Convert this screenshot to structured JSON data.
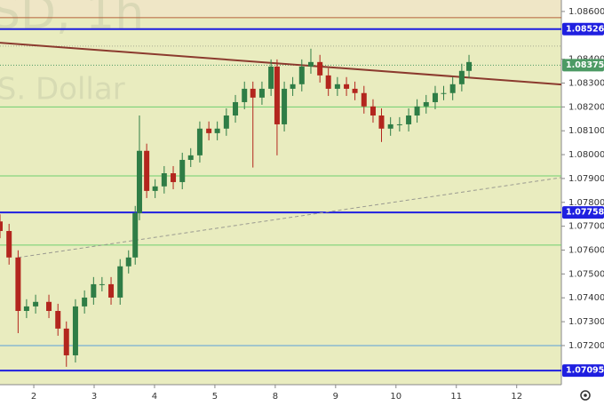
{
  "chart_data": {
    "type": "candlestick",
    "watermark": [
      "SD, 1h",
      ".S. Dollar"
    ],
    "x": [
      -0.56,
      -0.41,
      -0.26,
      -0.12,
      0.03,
      0.25,
      0.4,
      0.54,
      0.69,
      0.84,
      0.99,
      1.13,
      1.28,
      1.43,
      1.57,
      1.68,
      1.75,
      1.87,
      2.01,
      2.16,
      2.31,
      2.46,
      2.6,
      2.75,
      2.9,
      3.04,
      3.19,
      3.34,
      3.49,
      3.63,
      3.78,
      3.93,
      4.03,
      4.15,
      4.29,
      4.44,
      4.59,
      4.74,
      4.88,
      5.03,
      5.18,
      5.32,
      5.47,
      5.62,
      5.76,
      5.91,
      6.06,
      6.21,
      6.35,
      6.5,
      6.65,
      6.79,
      6.94,
      7.09,
      7.21
    ],
    "open": [
      1.0772,
      1.0768,
      1.07569,
      1.07345,
      1.07364,
      1.07383,
      1.07345,
      1.07271,
      1.07159,
      1.07364,
      1.07401,
      1.07457,
      1.07457,
      1.07401,
      1.07532,
      1.07569,
      1.07755,
      1.08016,
      1.07848,
      1.07867,
      1.07922,
      1.07885,
      1.07978,
      1.07997,
      1.08109,
      1.0809,
      1.08109,
      1.08164,
      1.0822,
      1.08276,
      1.08239,
      1.08276,
      1.08369,
      1.08127,
      1.08276,
      1.08295,
      1.08369,
      1.08388,
      1.08332,
      1.08276,
      1.08295,
      1.08276,
      1.08258,
      1.08202,
      1.08164,
      1.08109,
      1.08127,
      1.08127,
      1.08164,
      1.08202,
      1.0822,
      1.08258,
      1.08258,
      1.08295,
      1.08351
    ],
    "high": [
      1.0775,
      1.0771,
      1.07599,
      1.07394,
      1.07413,
      1.07413,
      1.07375,
      1.07301,
      1.07394,
      1.07431,
      1.07487,
      1.07487,
      1.07487,
      1.07562,
      1.07599,
      1.07785,
      1.08164,
      1.08046,
      1.07897,
      1.07952,
      1.07952,
      1.08008,
      1.08027,
      1.08139,
      1.08139,
      1.08139,
      1.08194,
      1.0825,
      1.08306,
      1.08306,
      1.08306,
      1.08399,
      1.08399,
      1.08306,
      1.08325,
      1.08399,
      1.08444,
      1.08418,
      1.08362,
      1.08325,
      1.08325,
      1.08306,
      1.08288,
      1.08232,
      1.08194,
      1.08157,
      1.08157,
      1.08194,
      1.08232,
      1.0825,
      1.08288,
      1.08288,
      1.08325,
      1.08381,
      1.08418
    ],
    "low": [
      1.0765,
      1.07539,
      1.07252,
      1.07315,
      1.07334,
      1.07315,
      1.07241,
      1.07111,
      1.07129,
      1.07334,
      1.07371,
      1.07427,
      1.07371,
      1.07371,
      1.07502,
      1.07539,
      1.07725,
      1.07818,
      1.07818,
      1.07837,
      1.07855,
      1.07855,
      1.07948,
      1.07967,
      1.0806,
      1.0806,
      1.08079,
      1.08134,
      1.0819,
      1.07946,
      1.08209,
      1.08246,
      1.07997,
      1.08097,
      1.08246,
      1.08265,
      1.08339,
      1.08302,
      1.08246,
      1.08246,
      1.08246,
      1.08228,
      1.08172,
      1.08134,
      1.08053,
      1.08079,
      1.08097,
      1.08097,
      1.08134,
      1.08172,
      1.0819,
      1.08228,
      1.08228,
      1.08265,
      1.08321
    ],
    "close": [
      1.0768,
      1.07569,
      1.07345,
      1.07364,
      1.07383,
      1.07345,
      1.07271,
      1.07159,
      1.07364,
      1.07401,
      1.07457,
      1.07457,
      1.07401,
      1.07532,
      1.07569,
      1.07755,
      1.08016,
      1.07848,
      1.07867,
      1.07922,
      1.07885,
      1.07978,
      1.07997,
      1.08109,
      1.0809,
      1.08109,
      1.08164,
      1.0822,
      1.08276,
      1.08239,
      1.08276,
      1.08369,
      1.08127,
      1.08276,
      1.08295,
      1.08369,
      1.08388,
      1.08332,
      1.08276,
      1.08295,
      1.08276,
      1.08258,
      1.08202,
      1.08164,
      1.08109,
      1.08127,
      1.08127,
      1.08164,
      1.08202,
      1.0822,
      1.08258,
      1.08258,
      1.08295,
      1.08351,
      1.08388
    ],
    "up_color": "#2f7d46",
    "down_color": "#b3261e",
    "xlim": [
      -0.56,
      8.74
    ],
    "ylim": [
      1.07036,
      1.08648
    ],
    "xticks": [
      {
        "value": 0,
        "label": "2"
      },
      {
        "value": 1,
        "label": "3"
      },
      {
        "value": 2,
        "label": "4"
      },
      {
        "value": 3,
        "label": "5"
      },
      {
        "value": 4,
        "label": "8"
      },
      {
        "value": 5,
        "label": "9"
      },
      {
        "value": 6,
        "label": "10"
      },
      {
        "value": 7,
        "label": "11"
      },
      {
        "value": 8,
        "label": "12"
      }
    ],
    "yticks": [
      {
        "value": 1.086,
        "label": "1.08600"
      },
      {
        "value": 1.084,
        "label": "1.08400"
      },
      {
        "value": 1.083,
        "label": "1.08300"
      },
      {
        "value": 1.082,
        "label": "1.08200"
      },
      {
        "value": 1.081,
        "label": "1.08100"
      },
      {
        "value": 1.08,
        "label": "1.08000"
      },
      {
        "value": 1.079,
        "label": "1.07900"
      },
      {
        "value": 1.078,
        "label": "1.07800"
      },
      {
        "value": 1.077,
        "label": "1.07700"
      },
      {
        "value": 1.076,
        "label": "1.07600"
      },
      {
        "value": 1.075,
        "label": "1.07500"
      },
      {
        "value": 1.074,
        "label": "1.07400"
      },
      {
        "value": 1.073,
        "label": "1.07300"
      },
      {
        "value": 1.072,
        "label": "1.07200"
      }
    ],
    "grid": false,
    "levels": [
      {
        "value": 1.08574,
        "color": "#b5603a",
        "style": "solid",
        "boxed": false
      },
      {
        "value": 1.08526,
        "color": "#1f1fe0",
        "style": "thick",
        "boxed": true
      },
      {
        "value": 1.08455,
        "color": "#a9ab93",
        "style": "dotted",
        "boxed": false
      },
      {
        "value": 1.08375,
        "color": "#4c9a64",
        "style": "dotted",
        "boxed": true
      },
      {
        "value": 1.082,
        "color": "#6fcf6f",
        "style": "solid",
        "boxed": false
      },
      {
        "value": 1.07911,
        "color": "#6fcf6f",
        "style": "solid",
        "boxed": false
      },
      {
        "value": 1.07758,
        "color": "#1f1fe0",
        "style": "thick",
        "boxed": true
      },
      {
        "value": 1.07621,
        "color": "#6fcf6f",
        "style": "solid",
        "boxed": false
      },
      {
        "value": 1.072,
        "color": "#5aa0d8",
        "style": "solid",
        "boxed": false
      },
      {
        "value": 1.07095,
        "color": "#1f1fe0",
        "style": "thick",
        "boxed": true
      }
    ],
    "trendlines": [
      {
        "x": [
          -0.56,
          8.74
        ],
        "y": [
          1.08469,
          1.08294
        ],
        "color": "#8b3a2e",
        "dashed": false
      },
      {
        "x": [
          -0.26,
          8.74
        ],
        "y": [
          1.07569,
          1.07904
        ],
        "color": "#9a9a90",
        "dashed": true
      }
    ]
  }
}
